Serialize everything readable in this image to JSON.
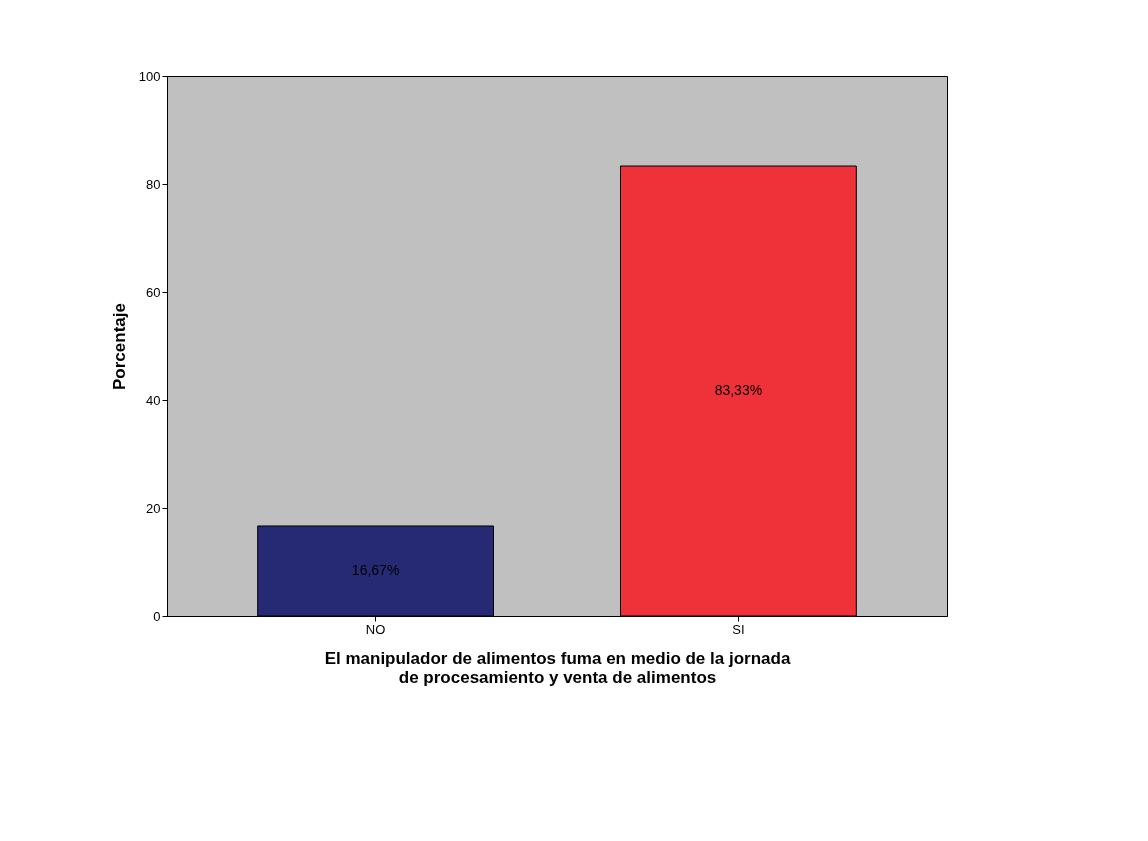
{
  "chart_data": {
    "type": "bar",
    "categories": [
      "NO",
      "SI"
    ],
    "values": [
      16.67,
      83.33
    ],
    "colors": [
      "#262a75",
      "#ef323a"
    ],
    "value_labels": [
      "16,67%",
      "83,33%"
    ],
    "xlabel": "El manipulador de alimentos fuma en medio de la jornada\nde procesamiento y venta de alimentos",
    "ylabel": "Porcentaje",
    "ylim": [
      0,
      100
    ],
    "yticks": [
      0,
      20,
      40,
      60,
      80,
      100
    ],
    "grid": false
  }
}
